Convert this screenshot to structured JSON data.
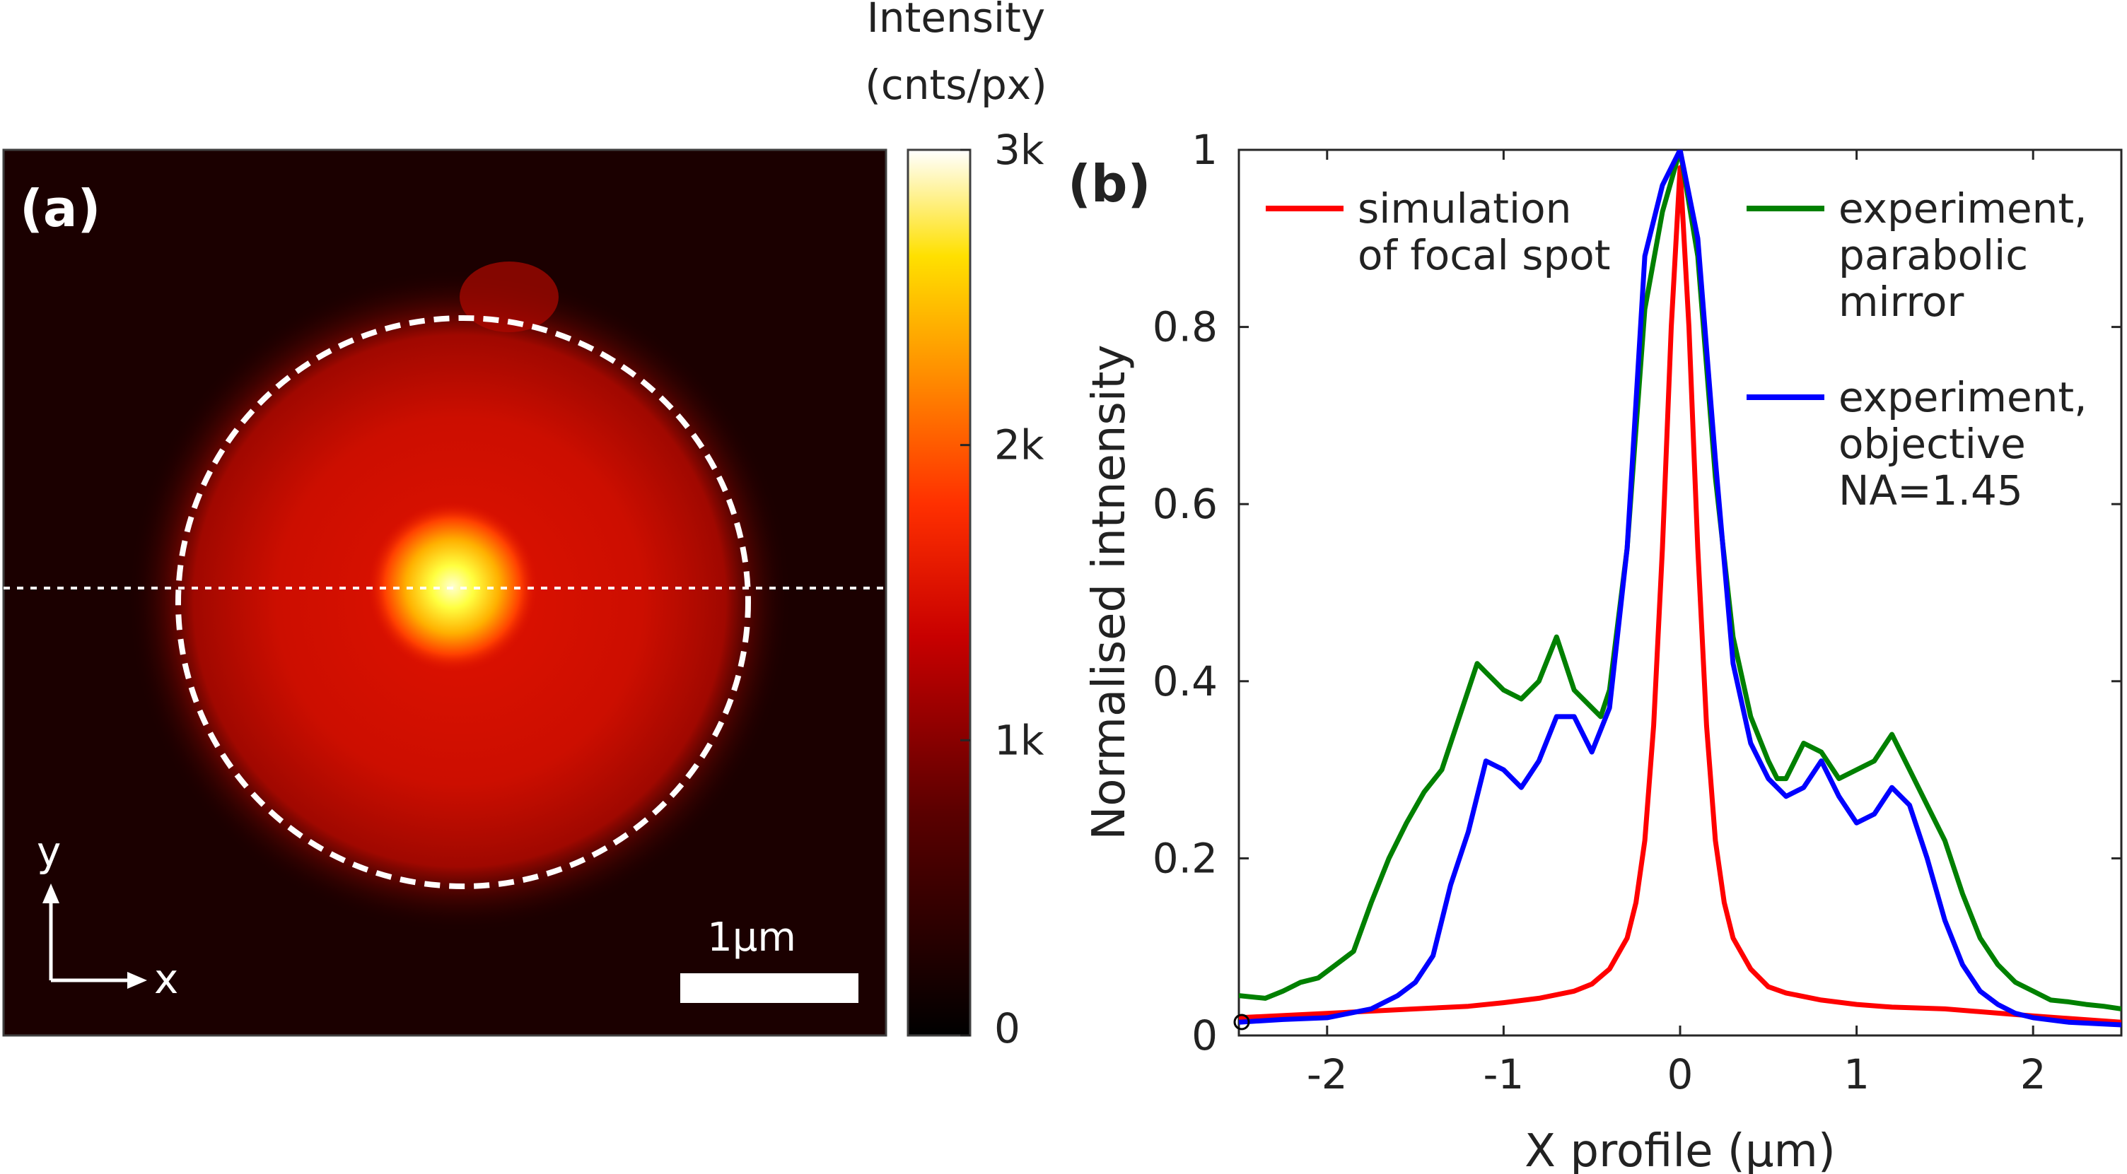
{
  "colorbar": {
    "title_line1": "Intensity",
    "title_line2": "(cnts/px)",
    "ticks": [
      {
        "value": 0,
        "label": "0"
      },
      {
        "value": 1000,
        "label": "1k"
      },
      {
        "value": 2000,
        "label": "2k"
      },
      {
        "value": 3000,
        "label": "3k"
      }
    ],
    "range": [
      0,
      3000
    ]
  },
  "panel_a": {
    "label": "(a)",
    "axis_y": "y",
    "axis_x": "x",
    "scalebar_label": "1μm",
    "background": "#1b0000"
  },
  "chart_data": {
    "type": "line",
    "panel_label": "(b)",
    "xlabel": "X profile (μm)",
    "ylabel": "Normalised intnensity",
    "xlim": [
      -2.5,
      2.5
    ],
    "ylim": [
      0,
      1
    ],
    "xticks": [
      -2,
      -1,
      0,
      1,
      2
    ],
    "xtick_labels": [
      "-2",
      "-1",
      "0",
      "1",
      "2"
    ],
    "yticks": [
      0,
      0.2,
      0.4,
      0.6,
      0.8,
      1
    ],
    "ytick_labels": [
      "0",
      "0.2",
      "0.4",
      "0.6",
      "0.8",
      "1"
    ],
    "series": [
      {
        "name": "simulation of focal spot",
        "legend_lines": [
          "simulation",
          "of focal spot"
        ],
        "color": "#ff0000",
        "x": [
          -2.5,
          -2.0,
          -1.5,
          -1.2,
          -1.0,
          -0.8,
          -0.6,
          -0.5,
          -0.4,
          -0.3,
          -0.25,
          -0.2,
          -0.15,
          -0.1,
          -0.05,
          0,
          0.05,
          0.1,
          0.15,
          0.2,
          0.25,
          0.3,
          0.4,
          0.5,
          0.6,
          0.8,
          1.0,
          1.2,
          1.5,
          2.0,
          2.5
        ],
        "y": [
          0.02,
          0.025,
          0.03,
          0.033,
          0.037,
          0.042,
          0.05,
          0.058,
          0.075,
          0.11,
          0.15,
          0.22,
          0.35,
          0.55,
          0.8,
          0.98,
          0.8,
          0.55,
          0.35,
          0.22,
          0.15,
          0.11,
          0.075,
          0.055,
          0.048,
          0.04,
          0.035,
          0.032,
          0.03,
          0.022,
          0.015
        ]
      },
      {
        "name": "experiment, parabolic mirror",
        "legend_lines": [
          "experiment,",
          "parabolic",
          "mirror"
        ],
        "color": "#008000",
        "x": [
          -2.5,
          -2.35,
          -2.25,
          -2.15,
          -2.05,
          -1.95,
          -1.85,
          -1.75,
          -1.65,
          -1.55,
          -1.45,
          -1.35,
          -1.25,
          -1.15,
          -1.1,
          -1.0,
          -0.9,
          -0.8,
          -0.7,
          -0.6,
          -0.5,
          -0.45,
          -0.4,
          -0.3,
          -0.2,
          -0.1,
          0,
          0.1,
          0.2,
          0.3,
          0.4,
          0.5,
          0.55,
          0.6,
          0.7,
          0.8,
          0.9,
          1.0,
          1.1,
          1.2,
          1.3,
          1.4,
          1.5,
          1.6,
          1.7,
          1.8,
          1.9,
          2.0,
          2.1,
          2.2,
          2.3,
          2.4,
          2.5
        ],
        "y": [
          0.045,
          0.042,
          0.05,
          0.06,
          0.065,
          0.08,
          0.095,
          0.15,
          0.2,
          0.24,
          0.275,
          0.3,
          0.36,
          0.42,
          0.41,
          0.39,
          0.38,
          0.4,
          0.45,
          0.39,
          0.37,
          0.36,
          0.39,
          0.55,
          0.82,
          0.93,
          1.0,
          0.88,
          0.63,
          0.45,
          0.36,
          0.31,
          0.29,
          0.29,
          0.33,
          0.32,
          0.29,
          0.3,
          0.31,
          0.34,
          0.3,
          0.26,
          0.22,
          0.16,
          0.11,
          0.08,
          0.06,
          0.05,
          0.04,
          0.038,
          0.035,
          0.033,
          0.03
        ]
      },
      {
        "name": "experiment, objective NA=1.45",
        "legend_lines": [
          "experiment,",
          "objective",
          "NA=1.45"
        ],
        "color": "#0000ff",
        "x": [
          -2.5,
          -2.25,
          -2.0,
          -1.75,
          -1.6,
          -1.5,
          -1.4,
          -1.3,
          -1.2,
          -1.1,
          -1.0,
          -0.9,
          -0.8,
          -0.7,
          -0.6,
          -0.5,
          -0.4,
          -0.3,
          -0.2,
          -0.1,
          0,
          0.1,
          0.2,
          0.3,
          0.4,
          0.5,
          0.6,
          0.7,
          0.8,
          0.9,
          1.0,
          1.1,
          1.2,
          1.3,
          1.4,
          1.5,
          1.6,
          1.7,
          1.8,
          1.9,
          2.0,
          2.2,
          2.5
        ],
        "y": [
          0.015,
          0.018,
          0.02,
          0.03,
          0.045,
          0.06,
          0.09,
          0.17,
          0.23,
          0.31,
          0.3,
          0.28,
          0.31,
          0.36,
          0.36,
          0.32,
          0.37,
          0.55,
          0.88,
          0.96,
          1.0,
          0.9,
          0.65,
          0.42,
          0.33,
          0.29,
          0.27,
          0.28,
          0.31,
          0.27,
          0.24,
          0.25,
          0.28,
          0.26,
          0.2,
          0.13,
          0.08,
          0.05,
          0.035,
          0.025,
          0.02,
          0.015,
          0.012
        ]
      }
    ]
  }
}
